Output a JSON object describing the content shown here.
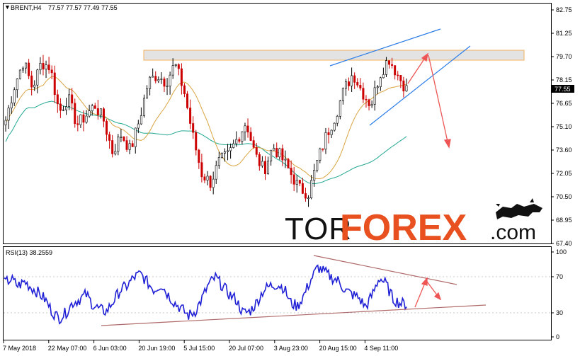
{
  "main_panel": {
    "symbol_label": "BRENT,H4",
    "ohlc_label": "77.57 77.57 77.49 77.55",
    "current_price_label": "77.55",
    "price_ticks": [
      "82.75",
      "81.25",
      "79.70",
      "78.15",
      "76.65",
      "75.10",
      "73.60",
      "72.05",
      "70.50",
      "68.95",
      "67.40"
    ]
  },
  "rsi_panel": {
    "label": "RSI(13) 38.2559",
    "levels": [
      "100",
      "70",
      "30",
      "0"
    ]
  },
  "time_axis": {
    "labels": [
      "7 May 2018",
      "22 May 07:00",
      "6 Jun 03:00",
      "20 Jun 19:00",
      "5 Jul 15:00",
      "20 Jul 07:00",
      "3 Aug 23:00",
      "20 Aug 15:00",
      "4 Sep 11:00"
    ]
  },
  "brand": {
    "tor": "TOR",
    "forex": "FOREX",
    "com": ".com"
  },
  "colors": {
    "up_candle": "#000000",
    "down_candle": "#cc0000",
    "ma_fast": "#d9a441",
    "ma_slow": "#22a892",
    "rsi_line": "#1f1fd6",
    "trend_blue": "#2b7de9",
    "trend_red": "#ee5555",
    "rsi_trend": "#b06a6a",
    "zone_fill": "#e3e3e3",
    "zone_border": "#f0b060"
  },
  "chart_data": [
    {
      "type": "candlestick",
      "title": "BRENT,H4",
      "ylim": [
        67.4,
        82.75
      ],
      "close_path": [
        {
          "x": "7 May 2018",
          "y": 75.5
        },
        {
          "x": "",
          "y": 77.8
        },
        {
          "x": "",
          "y": 79.4
        },
        {
          "x": "",
          "y": 77.6
        },
        {
          "x": "",
          "y": 79.3
        },
        {
          "x": "22 May 07:00",
          "y": 79.0
        },
        {
          "x": "",
          "y": 76.0
        },
        {
          "x": "",
          "y": 77.0
        },
        {
          "x": "",
          "y": 75.2
        },
        {
          "x": "6 Jun 03:00",
          "y": 75.8
        },
        {
          "x": "",
          "y": 76.5
        },
        {
          "x": "",
          "y": 75.5
        },
        {
          "x": "",
          "y": 73.4
        },
        {
          "x": "",
          "y": 74.6
        },
        {
          "x": "",
          "y": 73.5
        },
        {
          "x": "20 Jun 19:00",
          "y": 75.5
        },
        {
          "x": "",
          "y": 78.0
        },
        {
          "x": "",
          "y": 78.5
        },
        {
          "x": "",
          "y": 78.0
        },
        {
          "x": "",
          "y": 79.2
        },
        {
          "x": "5 Jul 15:00",
          "y": 77.5
        },
        {
          "x": "",
          "y": 74.5
        },
        {
          "x": "",
          "y": 72.0
        },
        {
          "x": "",
          "y": 71.4
        },
        {
          "x": "",
          "y": 72.8
        },
        {
          "x": "20 Jul 07:00",
          "y": 73.2
        },
        {
          "x": "",
          "y": 74.3
        },
        {
          "x": "",
          "y": 75.4
        },
        {
          "x": "",
          "y": 73.2
        },
        {
          "x": "",
          "y": 72.2
        },
        {
          "x": "",
          "y": 73.8
        },
        {
          "x": "3 Aug 23:00",
          "y": 73.0
        },
        {
          "x": "",
          "y": 72.0
        },
        {
          "x": "",
          "y": 71.0
        },
        {
          "x": "",
          "y": 70.7
        },
        {
          "x": "",
          "y": 72.8
        },
        {
          "x": "",
          "y": 74.5
        },
        {
          "x": "20 Aug 15:00",
          "y": 75.8
        },
        {
          "x": "",
          "y": 77.5
        },
        {
          "x": "",
          "y": 78.6
        },
        {
          "x": "",
          "y": 77.4
        },
        {
          "x": "4 Sep 11:00",
          "y": 76.5
        },
        {
          "x": "",
          "y": 78.5
        },
        {
          "x": "",
          "y": 79.6
        },
        {
          "x": "",
          "y": 78.5
        },
        {
          "x": "",
          "y": 77.55
        }
      ],
      "annotations": [
        "resistance zone",
        "rising channel",
        "projected rise then fall"
      ]
    },
    {
      "type": "line",
      "title": "RSI(13) 38.2559",
      "ylim": [
        0,
        100
      ],
      "levels": [
        70,
        30
      ],
      "series": [
        {
          "values": [
            63,
            68,
            60,
            65,
            58,
            52,
            44,
            30,
            22,
            28,
            40,
            44,
            50,
            38,
            32,
            30,
            42,
            55,
            60,
            70,
            74,
            64,
            55,
            62,
            50,
            40,
            33,
            25,
            30,
            45,
            62,
            70,
            60,
            50,
            44,
            28,
            30,
            40,
            55,
            60,
            62,
            58,
            40,
            36,
            50,
            68,
            82,
            76,
            70,
            66,
            55,
            50,
            46,
            35,
            50,
            70,
            62,
            45,
            40,
            38
          ]
        }
      ]
    }
  ]
}
